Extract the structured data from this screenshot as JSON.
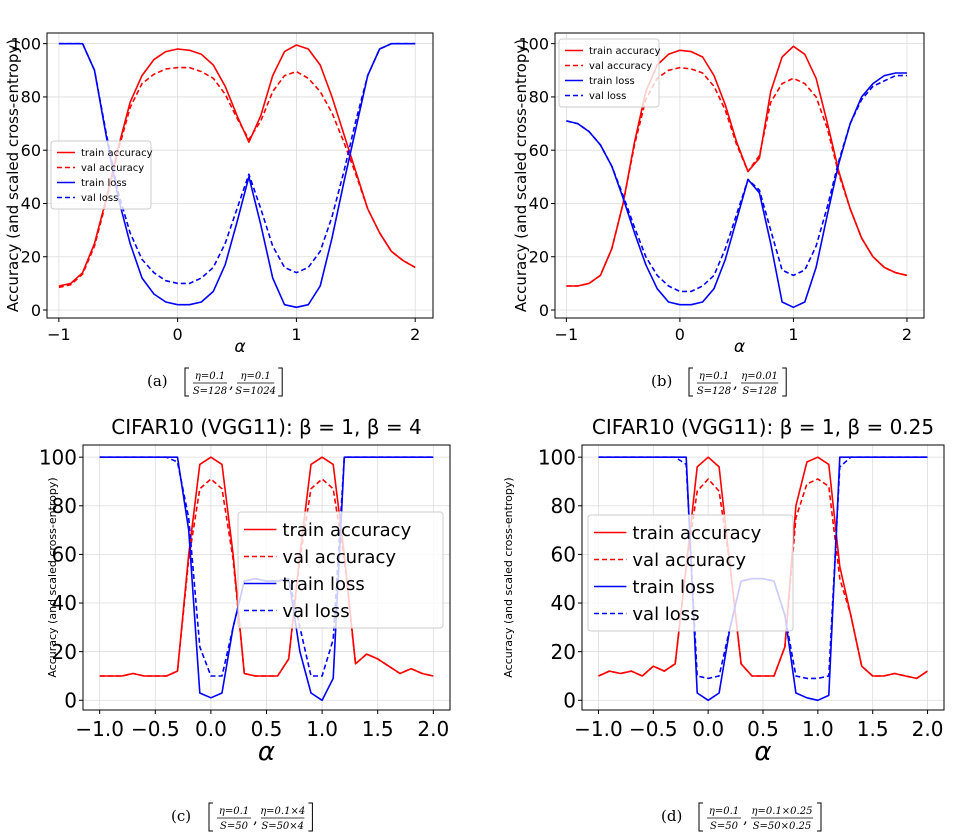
{
  "chart_data": [
    {
      "id": "a",
      "type": "line",
      "title": "",
      "xlabel": "α",
      "ylabel": "Accuracy (and scaled cross-entropy)",
      "xlim": [
        -1.1,
        2.15
      ],
      "ylim": [
        -3,
        104
      ],
      "xticks": [
        -1,
        0,
        1,
        2
      ],
      "xtick_labels": [
        "−1",
        "0",
        "1",
        "2"
      ],
      "yticks": [
        0,
        20,
        40,
        60,
        80,
        100
      ],
      "ytick_labels": [
        "0",
        "20",
        "40",
        "60",
        "80",
        "100"
      ],
      "grid": true,
      "legend_position": "center-left",
      "caption": {
        "label": "(a)",
        "t1": "η=0.1",
        "b1": "S=128",
        "t2": "η=0.1",
        "b2": "S=1024"
      },
      "x": [
        -1.0,
        -0.9,
        -0.8,
        -0.7,
        -0.6,
        -0.5,
        -0.4,
        -0.3,
        -0.2,
        -0.1,
        0.0,
        0.1,
        0.2,
        0.3,
        0.4,
        0.5,
        0.6,
        0.7,
        0.8,
        0.9,
        1.0,
        1.1,
        1.2,
        1.3,
        1.4,
        1.5,
        1.6,
        1.7,
        1.8,
        1.9,
        2.0
      ],
      "series": [
        {
          "name": "train accuracy",
          "color": "#ff0000",
          "dash": false,
          "values": [
            9,
            10,
            14,
            25,
            42,
            61,
            78,
            88,
            94,
            97,
            98,
            97.5,
            96,
            92,
            84,
            73,
            63,
            73,
            88,
            97,
            99.5,
            98,
            92,
            80,
            66,
            52,
            38,
            29,
            22,
            18.5,
            16
          ]
        },
        {
          "name": "val accuracy",
          "color": "#ff0000",
          "dash": true,
          "values": [
            8.5,
            9.5,
            13.5,
            24,
            41,
            60,
            76,
            85,
            88.5,
            90.5,
            91,
            91,
            89.5,
            87,
            81,
            72,
            64,
            71,
            82,
            88,
            89.5,
            87,
            82,
            74,
            63,
            51,
            38,
            29,
            22,
            18.5,
            16
          ]
        },
        {
          "name": "train loss",
          "color": "#0000ff",
          "dash": false,
          "values": [
            100,
            100,
            100,
            90,
            65,
            42,
            25,
            12,
            6,
            3,
            2,
            2,
            3,
            7,
            17,
            33,
            50,
            32,
            12,
            2,
            1,
            2,
            9,
            27,
            48,
            68,
            88,
            98,
            100,
            100,
            100
          ]
        },
        {
          "name": "val loss",
          "color": "#0000ff",
          "dash": true,
          "values": [
            100,
            100,
            100,
            90,
            66,
            44,
            29,
            19,
            14,
            11,
            10,
            10,
            12,
            16,
            25,
            38,
            51,
            38,
            24,
            16,
            14,
            16,
            22,
            35,
            52,
            71,
            88,
            98,
            100,
            100,
            100
          ]
        }
      ]
    },
    {
      "id": "b",
      "type": "line",
      "title": "",
      "xlabel": "α",
      "ylabel": "Accuracy (and scaled cross-entropy)",
      "xlim": [
        -1.1,
        2.15
      ],
      "ylim": [
        -3,
        104
      ],
      "xticks": [
        -1,
        0,
        1,
        2
      ],
      "xtick_labels": [
        "−1",
        "0",
        "1",
        "2"
      ],
      "yticks": [
        0,
        20,
        40,
        60,
        80,
        100
      ],
      "ytick_labels": [
        "0",
        "20",
        "40",
        "60",
        "80",
        "100"
      ],
      "grid": true,
      "legend_position": "upper-left",
      "caption": {
        "label": "(b)",
        "t1": "η=0.1",
        "b1": "S=128",
        "t2": "η=0.01",
        "b2": "S=128"
      },
      "x": [
        -1.0,
        -0.9,
        -0.8,
        -0.7,
        -0.6,
        -0.5,
        -0.4,
        -0.3,
        -0.2,
        -0.1,
        0.0,
        0.1,
        0.2,
        0.3,
        0.4,
        0.5,
        0.6,
        0.7,
        0.8,
        0.9,
        1.0,
        1.1,
        1.2,
        1.3,
        1.4,
        1.5,
        1.6,
        1.7,
        1.8,
        1.9,
        2.0
      ],
      "series": [
        {
          "name": "train accuracy",
          "color": "#ff0000",
          "dash": false,
          "values": [
            9,
            9,
            10,
            13,
            23,
            40,
            63,
            82,
            92,
            96,
            97.5,
            97,
            95,
            88,
            77,
            63,
            52,
            57,
            82,
            95,
            99,
            96,
            87,
            70,
            52,
            38,
            27,
            20,
            16,
            14,
            13
          ]
        },
        {
          "name": "val accuracy",
          "color": "#ff0000",
          "dash": true,
          "values": [
            9,
            9,
            10,
            13,
            23,
            40,
            62,
            79,
            87,
            90,
            91,
            90.5,
            89,
            84,
            75,
            62,
            52,
            58,
            78,
            85,
            87,
            85,
            80,
            68,
            51,
            38,
            27,
            20,
            16,
            14,
            13
          ]
        },
        {
          "name": "train loss",
          "color": "#0000ff",
          "dash": false,
          "values": [
            71,
            70,
            67,
            62,
            54,
            42,
            29,
            17,
            8,
            3,
            2,
            2,
            3,
            8,
            19,
            34,
            49,
            44,
            25,
            3,
            1,
            3,
            16,
            36,
            55,
            70,
            80,
            85,
            88,
            89,
            89
          ]
        },
        {
          "name": "val loss",
          "color": "#0000ff",
          "dash": true,
          "values": [
            71,
            70,
            67,
            62,
            54,
            43,
            31,
            20,
            13,
            9,
            7,
            7,
            9,
            13,
            23,
            36,
            49,
            45,
            30,
            15,
            13,
            15,
            24,
            39,
            56,
            70,
            79,
            84,
            86,
            88,
            88
          ]
        }
      ]
    },
    {
      "id": "c",
      "type": "line",
      "title": "CIFAR10 (VGG11): β = 1, β = 4",
      "xlabel": "α",
      "ylabel": "Accuracy (and scaled cross-entropy)",
      "xlim": [
        -1.15,
        2.15
      ],
      "ylim": [
        -4,
        105
      ],
      "xticks": [
        -1.0,
        -0.5,
        0.0,
        0.5,
        1.0,
        1.5,
        2.0
      ],
      "xtick_labels": [
        "−1.0",
        "−0.5",
        "0.0",
        "0.5",
        "1.0",
        "1.5",
        "2.0"
      ],
      "yticks": [
        0,
        20,
        40,
        60,
        80,
        100
      ],
      "ytick_labels": [
        "0",
        "20",
        "40",
        "60",
        "80",
        "100"
      ],
      "grid": true,
      "legend_position": "center",
      "caption": {
        "label": "(c)",
        "t1": "η=0.1",
        "b1": "S=50",
        "t2": "η=0.1×4",
        "b2": "S=50×4"
      },
      "x": [
        -1.0,
        -0.9,
        -0.8,
        -0.7,
        -0.6,
        -0.5,
        -0.4,
        -0.3,
        -0.2,
        -0.1,
        0.0,
        0.1,
        0.2,
        0.3,
        0.4,
        0.5,
        0.6,
        0.7,
        0.8,
        0.9,
        1.0,
        1.1,
        1.2,
        1.3,
        1.4,
        1.5,
        1.6,
        1.7,
        1.8,
        1.9,
        2.0
      ],
      "series": [
        {
          "name": "train accuracy",
          "color": "#ff0000",
          "dash": false,
          "values": [
            10,
            10,
            10,
            11,
            10,
            10,
            10,
            12,
            60,
            97,
            100,
            97,
            60,
            11,
            10,
            10,
            10,
            17,
            60,
            97,
            100,
            97,
            60,
            15,
            19,
            17,
            14,
            11,
            13,
            11,
            10
          ]
        },
        {
          "name": "val accuracy",
          "color": "#ff0000",
          "dash": true,
          "values": [
            10,
            10,
            10,
            11,
            10,
            10,
            10,
            12,
            58,
            87,
            91,
            87,
            58,
            11,
            10,
            10,
            10,
            17,
            58,
            87,
            91,
            87,
            58,
            15,
            19,
            17,
            14,
            11,
            13,
            11,
            10
          ]
        },
        {
          "name": "train loss",
          "color": "#0000ff",
          "dash": false,
          "values": [
            100,
            100,
            100,
            100,
            100,
            100,
            100,
            100,
            70,
            3,
            1,
            3,
            30,
            49,
            50,
            49,
            49,
            50,
            20,
            3,
            0,
            9,
            100,
            100,
            100,
            100,
            100,
            100,
            100,
            100,
            100
          ]
        },
        {
          "name": "val loss",
          "color": "#0000ff",
          "dash": true,
          "values": [
            100,
            100,
            100,
            100,
            100,
            100,
            100,
            98,
            75,
            22,
            10,
            10,
            30,
            49,
            50,
            49,
            49,
            50,
            30,
            10,
            10,
            25,
            100,
            100,
            100,
            100,
            100,
            100,
            100,
            100,
            100
          ]
        }
      ]
    },
    {
      "id": "d",
      "type": "line",
      "title": "CIFAR10 (VGG11): β = 1, β = 0.25",
      "xlabel": "α",
      "ylabel": "Accuracy (and scaled cross-entropy)",
      "xlim": [
        -1.15,
        2.15
      ],
      "ylim": [
        -4,
        105
      ],
      "xticks": [
        -1.0,
        -0.5,
        0.0,
        0.5,
        1.0,
        1.5,
        2.0
      ],
      "xtick_labels": [
        "−1.0",
        "−0.5",
        "0.0",
        "0.5",
        "1.0",
        "1.5",
        "2.0"
      ],
      "yticks": [
        0,
        20,
        40,
        60,
        80,
        100
      ],
      "ytick_labels": [
        "0",
        "20",
        "40",
        "60",
        "80",
        "100"
      ],
      "grid": true,
      "legend_position": "center-left",
      "caption": {
        "label": "(d)",
        "t1": "η=0.1",
        "b1": "S=50",
        "t2": "η=0.1×0.25",
        "b2": "S=50×0.25"
      },
      "x": [
        -1.0,
        -0.9,
        -0.8,
        -0.7,
        -0.6,
        -0.5,
        -0.4,
        -0.3,
        -0.2,
        -0.1,
        0.0,
        0.1,
        0.2,
        0.3,
        0.4,
        0.5,
        0.6,
        0.7,
        0.8,
        0.9,
        1.0,
        1.1,
        1.2,
        1.3,
        1.4,
        1.5,
        1.6,
        1.7,
        1.8,
        1.9,
        2.0
      ],
      "series": [
        {
          "name": "train accuracy",
          "color": "#ff0000",
          "dash": false,
          "values": [
            10,
            12,
            11,
            12,
            10,
            14,
            12,
            15,
            55,
            96,
            100,
            96,
            55,
            15,
            10,
            10,
            10,
            22,
            80,
            98,
            100,
            97,
            55,
            35,
            14,
            10,
            10,
            11,
            10,
            9,
            12
          ]
        },
        {
          "name": "val accuracy",
          "color": "#ff0000",
          "dash": true,
          "values": [
            10,
            12,
            11,
            12,
            10,
            14,
            12,
            15,
            55,
            86,
            91,
            86,
            55,
            15,
            10,
            10,
            10,
            22,
            75,
            89,
            91,
            88,
            50,
            35,
            14,
            10,
            10,
            11,
            10,
            9,
            12
          ]
        },
        {
          "name": "train loss",
          "color": "#0000ff",
          "dash": false,
          "values": [
            100,
            100,
            100,
            100,
            100,
            100,
            100,
            100,
            100,
            3,
            0,
            3,
            30,
            49,
            50,
            50,
            49,
            35,
            3,
            1,
            0,
            2,
            100,
            100,
            100,
            100,
            100,
            100,
            100,
            100,
            100
          ]
        },
        {
          "name": "val loss",
          "color": "#0000ff",
          "dash": true,
          "values": [
            100,
            100,
            100,
            100,
            100,
            100,
            100,
            100,
            97,
            10,
            9,
            10,
            30,
            49,
            50,
            50,
            49,
            35,
            10,
            9,
            9,
            10,
            96,
            100,
            100,
            100,
            100,
            100,
            100,
            100,
            100
          ]
        }
      ]
    }
  ]
}
